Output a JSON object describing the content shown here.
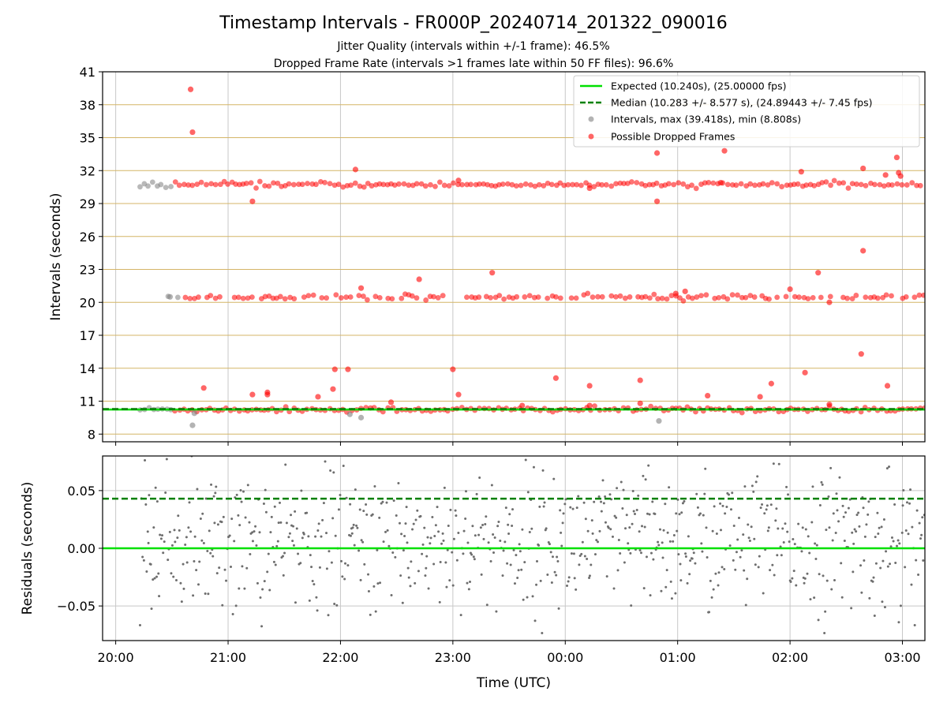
{
  "title": "Timestamp Intervals - FR000P_20240714_201322_090016",
  "subtitle_lines": [
    "Jitter Quality (intervals within +/-1 frame): 46.5%",
    "Dropped Frame Rate (intervals >1 frames late within 50 FF files): 96.6%"
  ],
  "colors": {
    "expected": "#00e000",
    "median": "#008000",
    "intervals": "#808080",
    "dropped": "#ff0000",
    "hgrid": "#d4b567",
    "vgrid": "#c8c8c8",
    "residual_points": "#6e6e6e"
  },
  "chart_data": [
    {
      "type": "scatter",
      "panel": "intervals",
      "ylabel": "Intervals (seconds)",
      "ylim": [
        7.3,
        41
      ],
      "y_ticks": [
        "8",
        "11",
        "14",
        "17",
        "20",
        "23",
        "26",
        "29",
        "32",
        "35",
        "38",
        "41"
      ],
      "x_tick_labels": [
        "20:00",
        "21:00",
        "22:00",
        "23:00",
        "00:00",
        "01:00",
        "02:00",
        "03:00"
      ],
      "xlim": [
        "2024-07-14T19:53",
        "2024-07-15T03:12"
      ],
      "grid": true,
      "legend_position": "top-right",
      "legend": [
        "Expected (10.240s), (25.00000 fps)",
        "Median (10.283 +/- 8.577 s), (24.89443 +/- 7.45 fps)",
        "Intervals, max (39.418s), min (8.808s)",
        "Possible Dropped Frames"
      ],
      "expected_line": 10.24,
      "median_line": 10.283,
      "bands": [
        {
          "name": "",
          "y": 10.24,
          "start": "2024-07-14T20:13",
          "end": "2024-07-15T03:12",
          "dropped_from": "2024-07-14T20:30"
        },
        {
          "name": "",
          "y": 20.48,
          "start": "2024-07-14T20:28",
          "end": "2024-07-15T03:12",
          "dropped_from": "2024-07-14T20:34"
        },
        {
          "name": "",
          "y": 30.72,
          "start": "2024-07-14T20:13",
          "end": "2024-07-15T03:12",
          "dropped_from": "2024-07-14T20:30"
        }
      ],
      "dropped_outliers": [
        {
          "t": "2024-07-14T20:40",
          "y": 39.4
        },
        {
          "t": "2024-07-14T20:41",
          "y": 35.5
        },
        {
          "t": "2024-07-14T20:47",
          "y": 12.2
        },
        {
          "t": "2024-07-14T21:13",
          "y": 29.2
        },
        {
          "t": "2024-07-14T21:13",
          "y": 11.6
        },
        {
          "t": "2024-07-14T21:21",
          "y": 11.8
        },
        {
          "t": "2024-07-14T21:21",
          "y": 11.6
        },
        {
          "t": "2024-07-14T21:48",
          "y": 11.4
        },
        {
          "t": "2024-07-14T21:56",
          "y": 12.1
        },
        {
          "t": "2024-07-14T21:57",
          "y": 13.9
        },
        {
          "t": "2024-07-14T22:04",
          "y": 13.9
        },
        {
          "t": "2024-07-14T22:08",
          "y": 32.1
        },
        {
          "t": "2024-07-14T22:11",
          "y": 21.3
        },
        {
          "t": "2024-07-14T22:27",
          "y": 10.9
        },
        {
          "t": "2024-07-14T22:42",
          "y": 22.1
        },
        {
          "t": "2024-07-14T23:00",
          "y": 13.9
        },
        {
          "t": "2024-07-14T23:03",
          "y": 11.6
        },
        {
          "t": "2024-07-14T23:03",
          "y": 31.1
        },
        {
          "t": "2024-07-14T23:21",
          "y": 22.7
        },
        {
          "t": "2024-07-14T23:37",
          "y": 10.6
        },
        {
          "t": "2024-07-14T23:55",
          "y": 13.1
        },
        {
          "t": "2024-07-15T00:13",
          "y": 12.4
        },
        {
          "t": "2024-07-15T00:13",
          "y": 30.4
        },
        {
          "t": "2024-07-15T00:13",
          "y": 10.6
        },
        {
          "t": "2024-07-15T00:40",
          "y": 12.9
        },
        {
          "t": "2024-07-15T00:40",
          "y": 10.8
        },
        {
          "t": "2024-07-15T00:49",
          "y": 33.6
        },
        {
          "t": "2024-07-15T00:49",
          "y": 29.2
        },
        {
          "t": "2024-07-15T00:59",
          "y": 20.8
        },
        {
          "t": "2024-07-15T01:04",
          "y": 21.0
        },
        {
          "t": "2024-07-15T01:16",
          "y": 11.5
        },
        {
          "t": "2024-07-15T01:23",
          "y": 30.9
        },
        {
          "t": "2024-07-15T01:25",
          "y": 33.8
        },
        {
          "t": "2024-07-15T01:44",
          "y": 11.4
        },
        {
          "t": "2024-07-15T01:50",
          "y": 12.6
        },
        {
          "t": "2024-07-15T02:00",
          "y": 21.2
        },
        {
          "t": "2024-07-15T02:06",
          "y": 31.9
        },
        {
          "t": "2024-07-15T02:08",
          "y": 13.6
        },
        {
          "t": "2024-07-15T02:15",
          "y": 22.7
        },
        {
          "t": "2024-07-15T02:21",
          "y": 20.0
        },
        {
          "t": "2024-07-15T02:21",
          "y": 10.7
        },
        {
          "t": "2024-07-15T02:38",
          "y": 15.3
        },
        {
          "t": "2024-07-15T02:39",
          "y": 24.7
        },
        {
          "t": "2024-07-15T02:39",
          "y": 32.2
        },
        {
          "t": "2024-07-15T02:51",
          "y": 31.6
        },
        {
          "t": "2024-07-15T02:52",
          "y": 12.4
        },
        {
          "t": "2024-07-15T02:57",
          "y": 33.2
        },
        {
          "t": "2024-07-15T02:58",
          "y": 31.8
        },
        {
          "t": "2024-07-15T02:59",
          "y": 31.5
        }
      ],
      "interval_outliers": [
        {
          "t": "2024-07-14T20:41",
          "y": 8.8
        },
        {
          "t": "2024-07-14T20:42",
          "y": 9.9
        },
        {
          "t": "2024-07-14T22:05",
          "y": 9.8
        },
        {
          "t": "2024-07-14T22:11",
          "y": 9.5
        },
        {
          "t": "2024-07-15T00:50",
          "y": 9.2
        },
        {
          "t": "2024-07-14T20:29",
          "y": 20.5
        }
      ]
    },
    {
      "type": "scatter",
      "panel": "residuals",
      "ylabel": "Residuals (seconds)",
      "xlabel": "Time (UTC)",
      "ylim": [
        -0.08,
        0.08
      ],
      "y_ticks": [
        "−0.05",
        "0.00",
        "0.05"
      ],
      "x_tick_labels": [
        "20:00",
        "21:00",
        "22:00",
        "23:00",
        "00:00",
        "01:00",
        "02:00",
        "03:00"
      ],
      "xlim": [
        "2024-07-14T19:53",
        "2024-07-15T03:12"
      ],
      "grid": true,
      "expected_line": 0.0,
      "median_line": 0.043,
      "residuals_start": "2024-07-14T20:13",
      "residuals_end": "2024-07-15T03:12",
      "residuals_center": 0.005,
      "residuals_spread": 0.03
    }
  ]
}
